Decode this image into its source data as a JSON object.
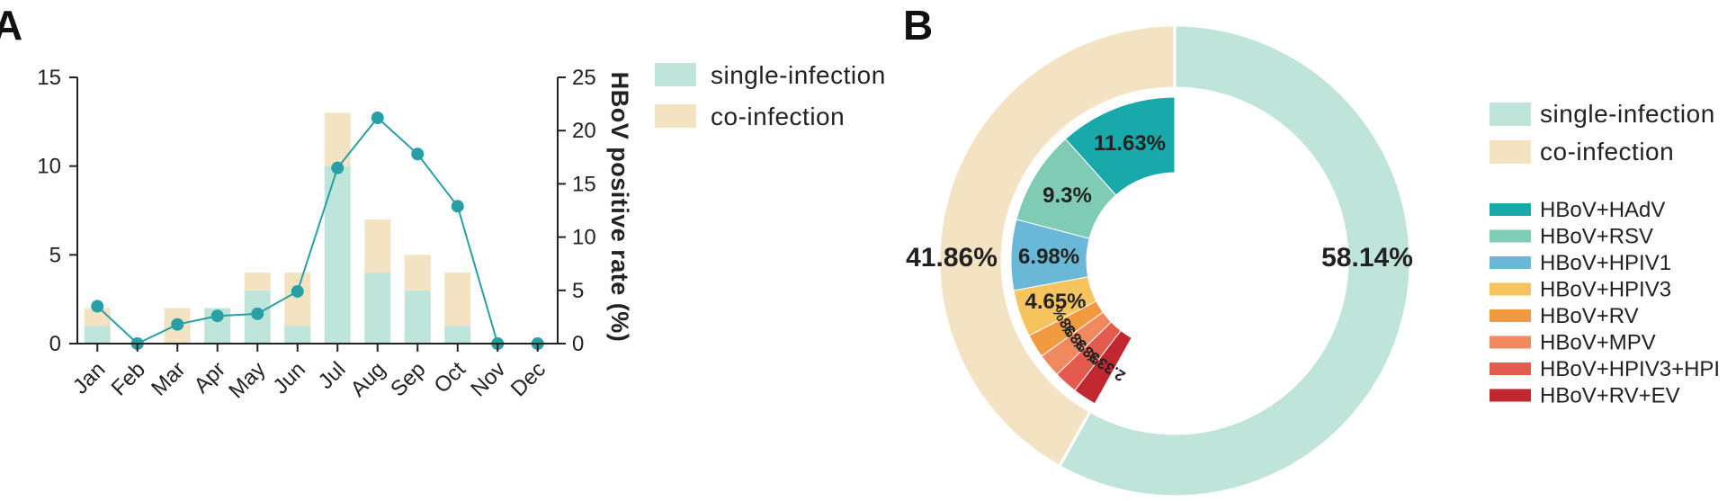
{
  "panels": {
    "a": "A",
    "b": "B"
  },
  "legend": {
    "single": {
      "label": "single-infection",
      "color": "#bfe5da"
    },
    "co": {
      "label": "co-infection",
      "color": "#f3e3c3"
    }
  },
  "chart_data": [
    {
      "type": "bar",
      "panel": "A",
      "categories": [
        "Jan",
        "Feb",
        "Mar",
        "Apr",
        "May",
        "Jun",
        "Jul",
        "Aug",
        "Sep",
        "Oct",
        "Nov",
        "Dec"
      ],
      "series": [
        {
          "name": "single-infection",
          "values": [
            1,
            0,
            0,
            2,
            3,
            1,
            10,
            4,
            3,
            1,
            0,
            0
          ],
          "color": "#bfe5da"
        },
        {
          "name": "co-infection",
          "values": [
            1,
            0,
            2,
            0,
            1,
            3,
            3,
            3,
            2,
            3,
            0,
            0
          ],
          "color": "#f3e3c3"
        }
      ],
      "line": {
        "values": [
          3.5,
          0,
          1.8,
          2.6,
          2.8,
          4.9,
          16.5,
          21.2,
          17.8,
          12.9,
          0,
          0
        ],
        "color": "#26a0a6"
      },
      "ylim": [
        0,
        15
      ],
      "yticks": [
        "0",
        "5",
        "10",
        "15"
      ],
      "y2lim": [
        0,
        25
      ],
      "y2ticks": [
        "0",
        "5",
        "10",
        "15",
        "20",
        "25"
      ],
      "y2label": "HBoV positive rate (%)"
    },
    {
      "type": "pie",
      "panel": "B",
      "outer": [
        {
          "name": "single-infection",
          "value": 58.14,
          "label": "58.14%",
          "color": "#bfe5da"
        },
        {
          "name": "co-infection",
          "value": 41.86,
          "label": "41.86%",
          "color": "#f3e3c3"
        }
      ],
      "inner": [
        {
          "name": "HBoV+HAdV",
          "value": 11.63,
          "label": "11.63%",
          "color": "#1aa9ab"
        },
        {
          "name": "HBoV+RSV",
          "value": 9.3,
          "label": "9.3%",
          "color": "#7fcbb3"
        },
        {
          "name": "HBoV+HPIV1",
          "value": 6.98,
          "label": "6.98%",
          "color": "#6ab8d8"
        },
        {
          "name": "HBoV+HPIV3",
          "value": 4.65,
          "label": "4.65%",
          "color": "#f6c45c"
        },
        {
          "name": "HBoV+RV",
          "value": 2.33,
          "label": "2.33%",
          "color": "#f29a40"
        },
        {
          "name": "HBoV+MPV",
          "value": 2.33,
          "label": "2.33%",
          "color": "#f08a5e"
        },
        {
          "name": "HBoV+HPIV3+HPI",
          "value": 2.33,
          "label": "2.33%",
          "color": "#e45a4e"
        },
        {
          "name": "HBoV+RV+EV",
          "value": 2.33,
          "label": "2.33%",
          "color": "#c0272e"
        }
      ]
    }
  ]
}
